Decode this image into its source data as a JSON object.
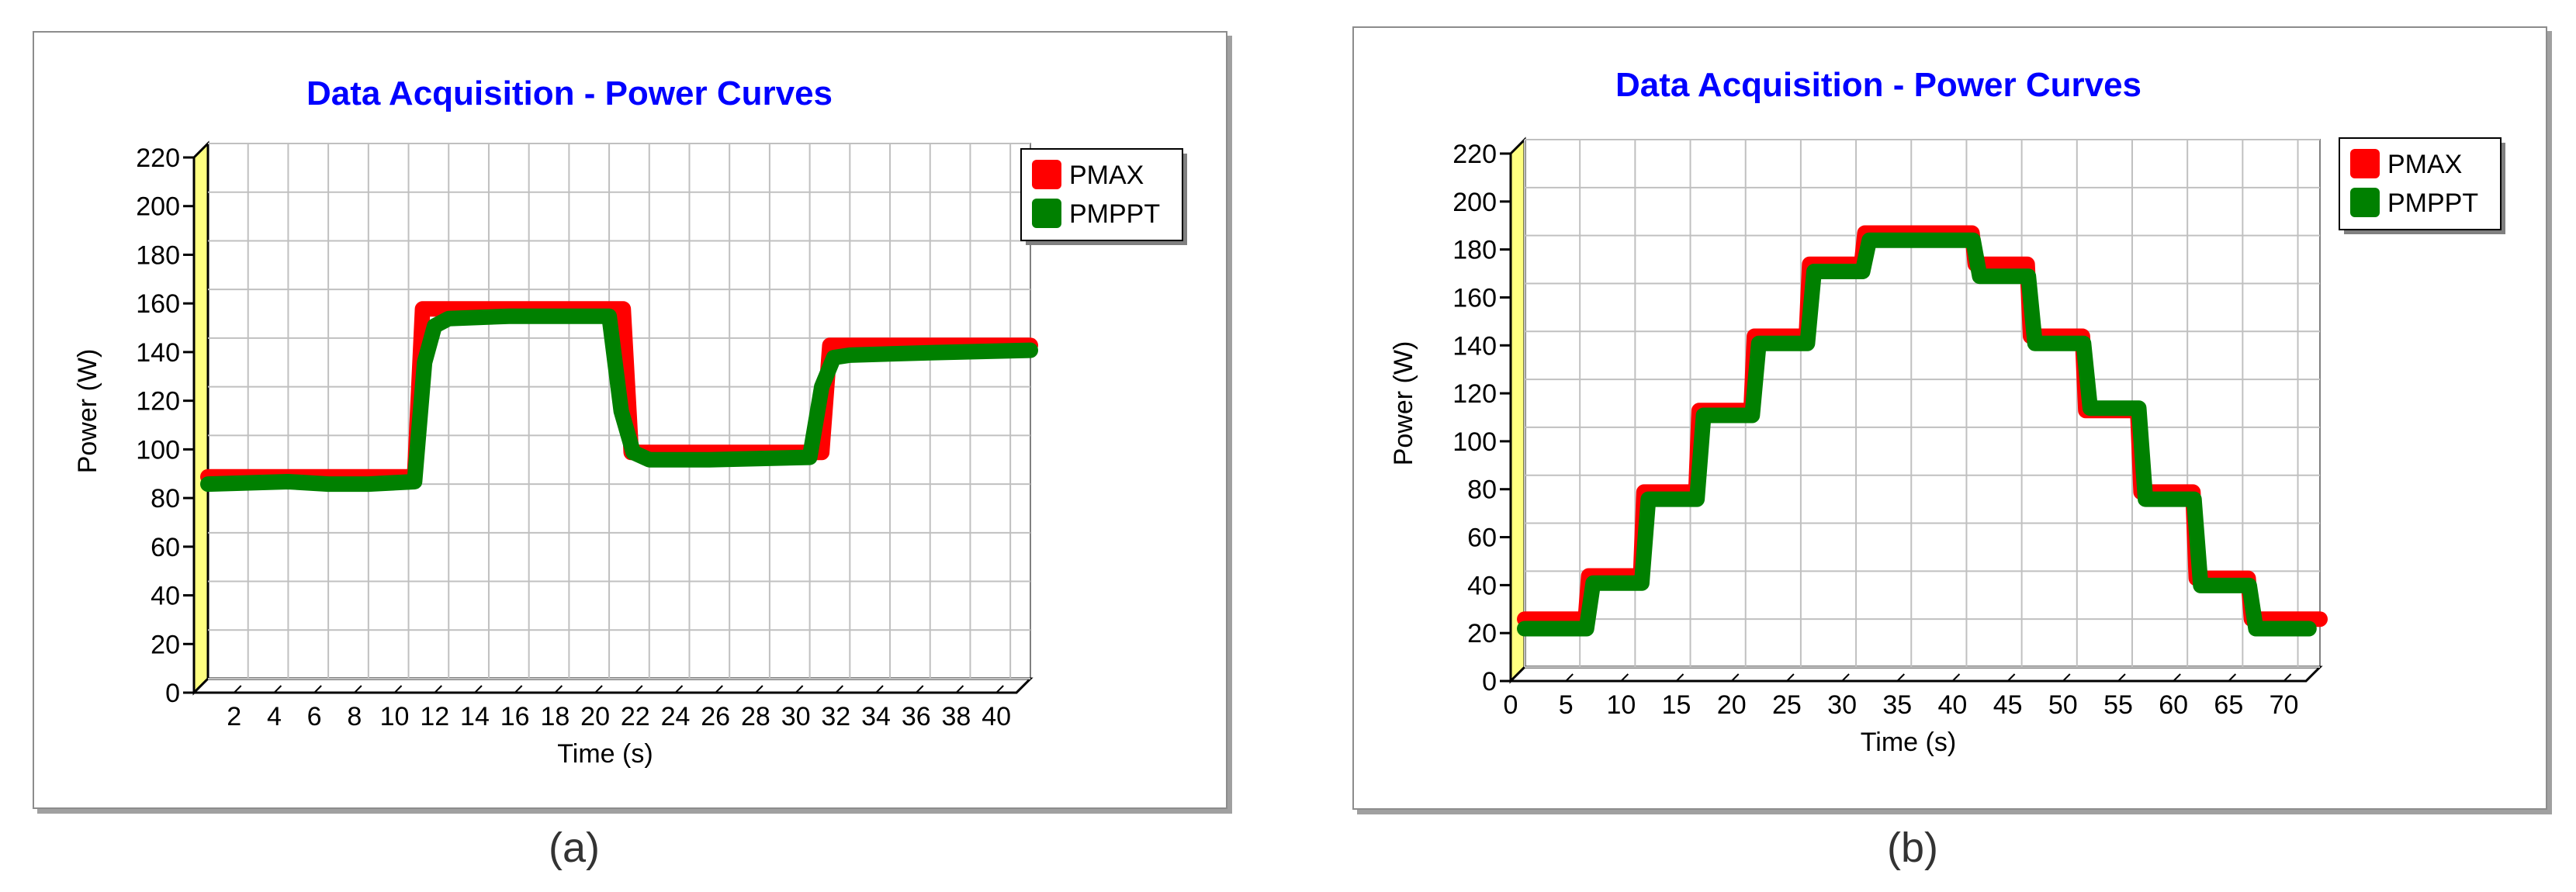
{
  "colors": {
    "pmax": "#ff0000",
    "pmppt": "#008000",
    "title": "#0000ff",
    "wall": "#ffff80",
    "grid": "#c0c0c0"
  },
  "captions": {
    "a": "(a)",
    "b": "(b)"
  },
  "chart_data": [
    {
      "type": "line",
      "title": "Data Acquisition - Power Curves",
      "xlabel": "Time (s)",
      "ylabel": "Power (W)",
      "xlim": [
        0,
        41
      ],
      "ylim": [
        0,
        220
      ],
      "xticks": [
        2,
        4,
        6,
        8,
        10,
        12,
        14,
        16,
        18,
        20,
        22,
        24,
        26,
        28,
        30,
        32,
        34,
        36,
        38,
        40
      ],
      "yticks": [
        0,
        20,
        40,
        60,
        80,
        100,
        120,
        140,
        160,
        180,
        200,
        220
      ],
      "grid": true,
      "legend": "top-right",
      "series": [
        {
          "name": "PMAX",
          "color": "#ff0000",
          "x": [
            0,
            10.3,
            10.7,
            20.7,
            21.1,
            30.6,
            31.0,
            41
          ],
          "y": [
            83,
            83,
            152,
            152,
            93,
            93,
            137,
            137
          ]
        },
        {
          "name": "PMPPT",
          "color": "#008000",
          "x": [
            0,
            4,
            6,
            8,
            10.3,
            10.8,
            11.3,
            12,
            15,
            20,
            20.6,
            21.2,
            22,
            25,
            30,
            30.6,
            31.2,
            32,
            36,
            41
          ],
          "y": [
            80,
            81,
            80,
            80,
            81,
            130,
            145,
            148,
            149,
            149,
            110,
            93,
            90,
            90,
            91,
            120,
            132,
            133,
            134,
            135
          ]
        }
      ]
    },
    {
      "type": "line",
      "title": "Data Acquisition - Power Curves",
      "xlabel": "Time (s)",
      "ylabel": "Power (W)",
      "xlim": [
        0,
        72
      ],
      "ylim": [
        0,
        220
      ],
      "xticks": [
        0,
        5,
        10,
        15,
        20,
        25,
        30,
        35,
        40,
        45,
        50,
        55,
        60,
        65,
        70
      ],
      "yticks": [
        0,
        20,
        40,
        60,
        80,
        100,
        120,
        140,
        160,
        180,
        200,
        220
      ],
      "grid": true,
      "legend": "top-right",
      "series": [
        {
          "name": "PMAX",
          "color": "#ff0000",
          "x": [
            0,
            5.5,
            5.8,
            10.5,
            10.8,
            15.5,
            15.8,
            20.5,
            20.8,
            25.5,
            25.8,
            30.5,
            30.8,
            40.5,
            40.8,
            45.5,
            45.8,
            50.5,
            50.8,
            55.5,
            55.8,
            60.5,
            60.8,
            65.5,
            65.8,
            72
          ],
          "y": [
            20,
            20,
            38,
            38,
            73,
            73,
            107,
            107,
            138,
            138,
            168,
            168,
            181,
            181,
            168,
            168,
            138,
            138,
            107,
            107,
            73,
            73,
            37,
            37,
            20,
            20
          ]
        },
        {
          "name": "PMPPT",
          "color": "#008000",
          "x": [
            0,
            5.6,
            6.2,
            10.6,
            11.2,
            15.6,
            16.2,
            20.6,
            21.2,
            25.6,
            26.2,
            30.6,
            31.2,
            40.6,
            41.2,
            45.6,
            46.2,
            50.6,
            51.2,
            55.6,
            56.2,
            60.6,
            61.2,
            65.6,
            66.2,
            71
          ],
          "y": [
            16,
            16,
            35,
            35,
            70,
            70,
            105,
            105,
            135,
            135,
            165,
            165,
            178,
            178,
            163,
            163,
            135,
            135,
            108,
            108,
            70,
            70,
            34,
            34,
            16,
            16
          ]
        }
      ]
    }
  ]
}
